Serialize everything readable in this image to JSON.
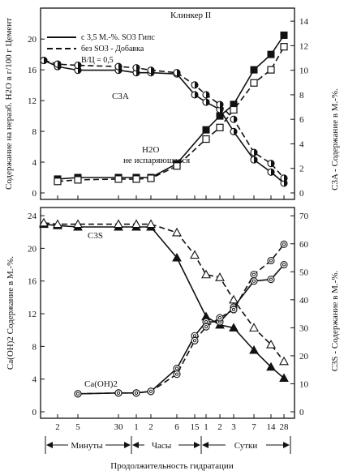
{
  "chart_data": [
    {
      "type": "line",
      "title": "Клинкер II",
      "ylabel": "Содержание на неразб. Н2О в г/100 г Цемент",
      "y2label": "C3A - Содержание в М.-%.",
      "ylim": [
        0,
        22
      ],
      "y2lim": [
        0,
        14
      ],
      "yticks": [
        "0",
        "4",
        "8",
        "12",
        "16",
        "20"
      ],
      "y2ticks": [
        "0",
        "2",
        "4",
        "6",
        "8",
        "10",
        "12",
        "14"
      ],
      "grid": false,
      "legend_position": "top-right",
      "legend": [
        {
          "text": "с  3,5 М.-%. SO3  Гипс",
          "style": "solid"
        },
        {
          "text": "без SO3 - Добавка",
          "style": "dashed"
        },
        {
          "text": "В/Ц = 0,5",
          "style": "none"
        }
      ],
      "annotations": [
        "C3A",
        "H2O",
        "не испаряющаяся"
      ],
      "series": [
        {
          "axis": "left",
          "style": "solid",
          "marker": "filled-square",
          "x": [
            2,
            5,
            30,
            60,
            120,
            360,
            1440,
            2880,
            4320,
            10080,
            20160,
            40320
          ],
          "y": [
            1.8,
            2.0,
            2.0,
            2.0,
            2.0,
            3.8,
            8.2,
            10.0,
            11.5,
            16.0,
            18.0,
            20.5
          ]
        },
        {
          "axis": "left",
          "style": "dashed",
          "marker": "open-square",
          "x": [
            2,
            5,
            30,
            60,
            120,
            360,
            1440,
            2880,
            4320,
            10080,
            20160,
            40320
          ],
          "y": [
            1.5,
            1.7,
            1.8,
            1.8,
            1.9,
            3.5,
            7.0,
            8.5,
            10.8,
            14.3,
            16.0,
            19.0
          ]
        },
        {
          "axis": "right",
          "style": "solid",
          "marker": "half-circle",
          "x": [
            1,
            2,
            5,
            30,
            60,
            120,
            360,
            900,
            1440,
            2880,
            4320,
            10080,
            20160,
            40320
          ],
          "y": [
            10.8,
            10.3,
            10.0,
            10.0,
            9.8,
            9.8,
            9.7,
            8.0,
            7.4,
            6.8,
            5.0,
            2.7,
            1.7,
            0.8
          ]
        },
        {
          "axis": "right",
          "style": "dashed",
          "marker": "half-circle",
          "x": [
            1,
            2,
            5,
            30,
            60,
            120,
            360,
            900,
            1440,
            2880,
            4320,
            10080,
            20160,
            40320
          ],
          "y": [
            10.8,
            10.5,
            10.4,
            10.3,
            10.2,
            10.0,
            9.8,
            8.8,
            8.0,
            7.2,
            6.0,
            3.3,
            2.4,
            1.2
          ]
        }
      ]
    },
    {
      "type": "line",
      "ylabel": "Ca(OH)2 Содержание в М.-%.",
      "y2label": "C3S - Содержание в М.-%.",
      "xlabel": "Продолжительность гидратации",
      "ylim": [
        0,
        24
      ],
      "y2lim": [
        0,
        70
      ],
      "yticks": [
        "0",
        "4",
        "8",
        "12",
        "16",
        "20",
        "24"
      ],
      "y2ticks": [
        "0",
        "10",
        "20",
        "30",
        "40",
        "50",
        "60",
        "70"
      ],
      "xticks": [
        "2",
        "5",
        "30",
        "1",
        "2",
        "6",
        "15",
        "1",
        "2",
        "3",
        "7",
        "14",
        "28"
      ],
      "xgroups": [
        "Минуты",
        "Часы",
        "Сутки"
      ],
      "grid": false,
      "annotations": [
        "C3S",
        "Ca(OH)2"
      ],
      "series": [
        {
          "axis": "right",
          "style": "solid",
          "marker": "filled-triangle",
          "x": [
            1,
            2,
            5,
            30,
            60,
            120,
            360,
            1440,
            2880,
            4320,
            10080,
            20160,
            40320
          ],
          "y": [
            67,
            66.5,
            66,
            66,
            66,
            66,
            55,
            34,
            31,
            30,
            22,
            16,
            12
          ]
        },
        {
          "axis": "right",
          "style": "dashed",
          "marker": "open-triangle",
          "x": [
            1,
            2,
            5,
            30,
            60,
            120,
            360,
            900,
            1440,
            2880,
            4320,
            10080,
            20160,
            40320
          ],
          "y": [
            67.5,
            67,
            67,
            67,
            67,
            67,
            64,
            56,
            49,
            48,
            40,
            30,
            24,
            18
          ]
        },
        {
          "axis": "left",
          "style": "solid",
          "marker": "circle-dot",
          "x": [
            5,
            30,
            60,
            120,
            360,
            900,
            1440,
            2880,
            4320,
            10080,
            20160,
            40320
          ],
          "y": [
            2.2,
            2.3,
            2.3,
            2.5,
            5.3,
            9.3,
            11.0,
            11.0,
            12.8,
            16.0,
            16.2,
            18.0
          ]
        },
        {
          "axis": "left",
          "style": "dashed",
          "marker": "circle-dot",
          "x": [
            5,
            30,
            60,
            120,
            360,
            900,
            1440,
            2880,
            4320,
            10080,
            20160,
            40320
          ],
          "y": [
            2.2,
            2.3,
            2.3,
            2.5,
            4.6,
            8.7,
            10.4,
            11.5,
            12.5,
            16.8,
            18.5,
            20.5
          ]
        }
      ]
    }
  ]
}
